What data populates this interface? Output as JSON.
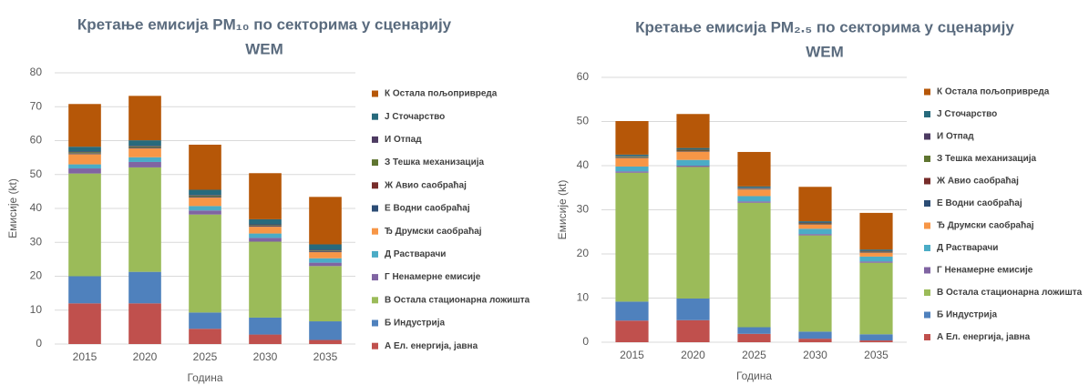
{
  "chart_data": [
    {
      "type": "stacked_bar",
      "title": [
        "Кретање емисија PM₁₀ по секторима у сценарију",
        "WEM"
      ],
      "ylabel": "Емисије (kt)",
      "xlabel": "Година",
      "categories": [
        "2015",
        "2020",
        "2025",
        "2030",
        "2035"
      ],
      "ylim": [
        0,
        80
      ],
      "yticks": [
        0,
        10,
        20,
        30,
        40,
        50,
        60,
        70,
        80
      ],
      "grid": true,
      "legend": "right",
      "series": [
        {
          "name": "А Ел. енергија, јавна",
          "color": "#c0504d",
          "values": [
            12,
            12,
            4.5,
            2.8,
            1.2
          ]
        },
        {
          "name": "Б Индустрија",
          "color": "#4f81bd",
          "values": [
            8,
            9.3,
            4.8,
            5,
            5.5
          ]
        },
        {
          "name": "В Остала стационарна ложишта",
          "color": "#9bbb59",
          "values": [
            30.3,
            30.8,
            28.9,
            22.4,
            16.3
          ]
        },
        {
          "name": "Г Ненамерне емисије",
          "color": "#8064a2",
          "values": [
            1.5,
            1.6,
            1.2,
            1.1,
            1
          ]
        },
        {
          "name": "Д Растварачи",
          "color": "#4bacc6",
          "values": [
            1.2,
            1.4,
            1.3,
            1.3,
            1.3
          ]
        },
        {
          "name": "Ђ Друмски саобраћај",
          "color": "#f79646",
          "values": [
            3,
            2.6,
            2.5,
            2,
            1.8
          ]
        },
        {
          "name": "Е Водни саобраћај",
          "color": "#2c4d75",
          "values": [
            0.2,
            0.2,
            0.2,
            0.2,
            0.2
          ]
        },
        {
          "name": "Ж Авио саобраћај",
          "color": "#772c2a",
          "values": [
            0.1,
            0.1,
            0.1,
            0.1,
            0.1
          ]
        },
        {
          "name": "З Тешка механизација",
          "color": "#5f7530",
          "values": [
            0.3,
            0.3,
            0.3,
            0.2,
            0.2
          ]
        },
        {
          "name": "И Отпад",
          "color": "#4d3b62",
          "values": [
            0.2,
            0.2,
            0.2,
            0.2,
            0.2
          ]
        },
        {
          "name": "Ј Сточарство",
          "color": "#276a7c",
          "values": [
            1.4,
            1.6,
            1.5,
            1.5,
            1.6
          ]
        },
        {
          "name": "К Остала пољопривреда",
          "color": "#b65708",
          "values": [
            12.6,
            13.1,
            13.3,
            13.6,
            14
          ]
        }
      ]
    },
    {
      "type": "stacked_bar",
      "title": [
        "Кретање емисија PM₂.₅ по секторима у сценарију",
        "WEM"
      ],
      "ylabel": "Емисије (kt)",
      "xlabel": "Година",
      "categories": [
        "2015",
        "2020",
        "2025",
        "2030",
        "2035"
      ],
      "ylim": [
        0,
        60
      ],
      "yticks": [
        0,
        10,
        20,
        30,
        40,
        50,
        60
      ],
      "grid": true,
      "legend": "right",
      "series": [
        {
          "name": "А Ел. енергија, јавна",
          "color": "#c0504d",
          "values": [
            4.9,
            5,
            1.9,
            0.8,
            0.4
          ]
        },
        {
          "name": "Б Индустрија",
          "color": "#4f81bd",
          "values": [
            4.3,
            4.9,
            1.5,
            1.6,
            1.4
          ]
        },
        {
          "name": "В Остала стационарна ложишта",
          "color": "#9bbb59",
          "values": [
            29.2,
            29.8,
            28.2,
            21.8,
            16.2
          ]
        },
        {
          "name": "Г Ненамерне емисије",
          "color": "#8064a2",
          "values": [
            0.3,
            0.3,
            0.3,
            0.3,
            0.3
          ]
        },
        {
          "name": "Д Растварачи",
          "color": "#4bacc6",
          "values": [
            1.1,
            1.3,
            1.2,
            1.2,
            1.1
          ]
        },
        {
          "name": "Ђ Друмски саобраћај",
          "color": "#f79646",
          "values": [
            1.9,
            1.9,
            1.5,
            1,
            0.9
          ]
        },
        {
          "name": "Е Водни саобраћај",
          "color": "#2c4d75",
          "values": [
            0.1,
            0.1,
            0.1,
            0.1,
            0.1
          ]
        },
        {
          "name": "Ж Авио саобраћај",
          "color": "#772c2a",
          "values": [
            0.1,
            0.1,
            0.1,
            0.1,
            0.1
          ]
        },
        {
          "name": "З Тешка механизација",
          "color": "#5f7530",
          "values": [
            0.2,
            0.2,
            0.1,
            0.1,
            0.1
          ]
        },
        {
          "name": "И Отпад",
          "color": "#4d3b62",
          "values": [
            0.1,
            0.1,
            0.1,
            0.1,
            0.1
          ]
        },
        {
          "name": "Ј Сточарство",
          "color": "#276a7c",
          "values": [
            0.3,
            0.3,
            0.3,
            0.3,
            0.3
          ]
        },
        {
          "name": "К Остала пољопривреда",
          "color": "#b65708",
          "values": [
            7.6,
            7.7,
            7.8,
            7.8,
            8.3
          ]
        }
      ]
    }
  ]
}
